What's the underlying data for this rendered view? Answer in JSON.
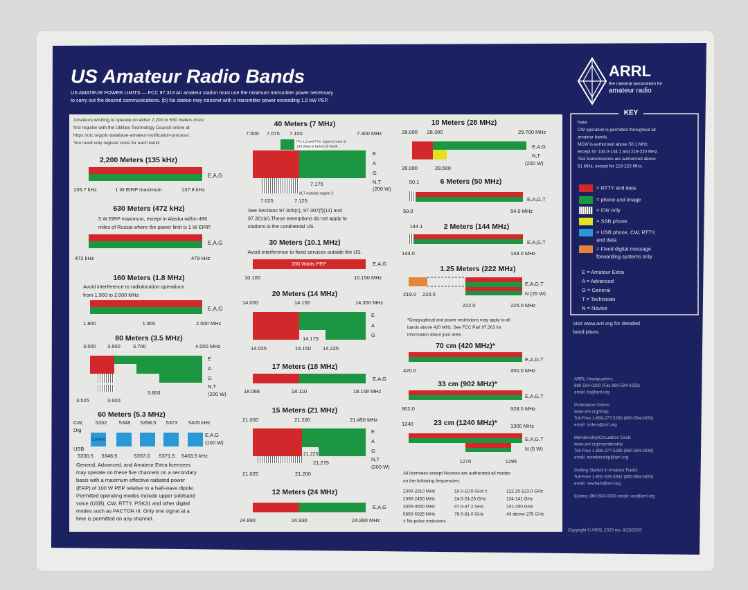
{
  "header": {
    "title": "US Amateur Radio Bands",
    "power_limits": [
      "US AMATEUR POWER LIMITS — FCC 97.313   An amateur station must use the minimum transmitter power necessary",
      "to carry out the desired communications.   (b) No station may transmit with a transmitter power exceeding 1.5 kW PEP."
    ]
  },
  "logo": {
    "name": "ARRL",
    "tagline": "the national association for",
    "subtitle": "amateur radio"
  },
  "intro": [
    "Amateurs wishing to operate on either 2,200 or 630 meters must",
    "first register with the Utilities Technology Council online at",
    "https://utc.org/plc-database-amateur-notification-process/.",
    "You need only register once for each band."
  ],
  "bands": {
    "b2200": {
      "title": "2,200 Meters (135 kHz)",
      "tiers": [
        "E,A,G"
      ],
      "labels": [
        "135.7 kHz",
        "1 W EIRP maximum",
        "137.8 kHz"
      ]
    },
    "b630": {
      "title": "630 Meters (472 kHz)",
      "notes": [
        "5 W EIRP maximum, except in Alaska within 496",
        "miles of Russia where the power limit is 1 W EIRP."
      ],
      "tiers": [
        "E,A,G"
      ],
      "labels": [
        "472 kHz",
        "479 kHz"
      ]
    },
    "b160": {
      "title": "160 Meters (1.8 MHz)",
      "notes": [
        "Avoid interference to radiolocation operations",
        "from 1.900 to 2.000 MHz"
      ],
      "tiers": [
        "E,A,G"
      ],
      "labels": [
        "1.800",
        "1.900",
        "2.000 MHz"
      ]
    },
    "b80": {
      "title": "80 Meters (3.5 MHz)",
      "top": [
        "3.500",
        "3.600",
        "3.700",
        "4.000 MHz"
      ],
      "tiers": [
        "E",
        "A",
        "G",
        "N,T",
        "(200 W)"
      ],
      "bottom": [
        "3.525",
        "3.600",
        "3.800"
      ]
    },
    "b60": {
      "title": "60 Meters (5.3 MHz)",
      "side": [
        "CW,",
        "Dig",
        "USB"
      ],
      "top": [
        "5332",
        "5348",
        "5358.5",
        "5373",
        "5405 kHz"
      ],
      "box": "2.8 kHz",
      "tiers": [
        "E,A,G",
        "(100 W)"
      ],
      "bottom": [
        "5330.5",
        "5346.5",
        "5357.0",
        "5371.5",
        "5403.5 kHz"
      ],
      "notes": [
        "General, Advanced, and Amateur Extra licensees",
        "may operate on these five channels on a secondary",
        "basis with a maximum effective radiated power",
        "(ERP) of 100 W PEP relative to a half-wave dipole.",
        "Permitted operating modes include upper sideband",
        "voice (USB), CW, RTTY, PSK31 and other digital",
        "modes such as PACTOR III. Only one signal at a",
        "time is permitted on any channel."
      ]
    },
    "b40": {
      "title": "40 Meters (7 MHz)",
      "top": [
        "7.000",
        "7.075",
        "7.100",
        "7.300 MHz"
      ],
      "inset": [
        "ITU 1,3 and FCC region 2 west of",
        "130 West or below 20 North"
      ],
      "tiers": [
        "E",
        "A",
        "G",
        "N,T",
        "(200 W)"
      ],
      "bottom": [
        "7.025",
        "7.125",
        "7.175"
      ],
      "outside": "N,T outside region 2",
      "notes": [
        "See Sections 97.305(c), 97.307(f)(11) and",
        "97.301(e).These exemptions do not apply to",
        "stations in the continental US."
      ]
    },
    "b30": {
      "title": "30 Meters (10.1 MHz)",
      "note": "Avoid interference to fixed services outside the US.",
      "bar": "200 Watts PEP",
      "tiers": [
        "E,A,G"
      ],
      "labels": [
        "10.100",
        "10.150 MHz"
      ]
    },
    "b20": {
      "title": "20 Meters (14 MHz)",
      "top": [
        "14.000",
        "14.150",
        "14.350 MHz"
      ],
      "tiers": [
        "E",
        "A",
        "G"
      ],
      "bottom": [
        "14.025",
        "14.150",
        "14.175",
        "14.225"
      ]
    },
    "b17": {
      "title": "17 Meters (18 MHz)",
      "tiers": [
        "E,A,G"
      ],
      "labels": [
        "18.068",
        "18.110",
        "18.168 MHz"
      ]
    },
    "b15": {
      "title": "15 Meters (21 MHz)",
      "top": [
        "21.000",
        "21.200",
        "21.450 MHz"
      ],
      "tiers": [
        "E",
        "A",
        "G",
        "N,T",
        "(200 W)"
      ],
      "mid": [
        "21.225",
        "21.275"
      ],
      "bottom": [
        "21.025",
        "21.200"
      ]
    },
    "b12": {
      "title": "12 Meters (24 MHz)",
      "tiers": [
        "E,A,G"
      ],
      "labels": [
        "24.890",
        "24.930",
        "24.990 MHz"
      ]
    },
    "b10": {
      "title": "10 Meters (28 MHz)",
      "top": [
        "28.000",
        "28.300",
        "29.700 MHz"
      ],
      "tiers": [
        "E,A,G",
        "N,T",
        "(200 W)"
      ],
      "bottom": [
        "28.000",
        "28.500"
      ]
    },
    "b6": {
      "title": "6 Meters (50 MHz)",
      "tiers": [
        "E,A,G,T"
      ],
      "labels": [
        "50.1",
        "50.0",
        "54.0 MHz"
      ]
    },
    "b2": {
      "title": "2 Meters (144 MHz)",
      "tiers": [
        "E,A,G,T"
      ],
      "labels": [
        "144.1",
        "144.0",
        "148.0 MHz"
      ]
    },
    "b125": {
      "title": "1.25 Meters (222 MHz)",
      "tiers": [
        "E,A,G,T",
        "N (25 W)"
      ],
      "labels": [
        "219.0",
        "220.0",
        "222.0",
        "225.0 MHz"
      ]
    },
    "b70": {
      "title": "70 cm (420 MHz)*",
      "tiers": [
        "E,A,G,T"
      ],
      "labels": [
        "420.0",
        "450.0 MHz"
      ]
    },
    "b33": {
      "title": "33 cm (902 MHz)*",
      "tiers": [
        "E,A,G,T"
      ],
      "labels": [
        "902.0",
        "928.0 MHz"
      ]
    },
    "b23": {
      "title": "23 cm (1240 MHz)*",
      "tiers": [
        "E,A,G,T",
        "N (5 W)"
      ],
      "labels": [
        "1240",
        "1300 MHz",
        "1270",
        "1295"
      ]
    }
  },
  "uhf_note": [
    "*Geographical and power restrictions may apply to all",
    "bands above 420 MHz. See FCC Part 97.303 for",
    "information about your area."
  ],
  "above": {
    "intro": [
      "All licensees except Novices are authorized all modes",
      "on the following frequencies:"
    ],
    "rows": [
      [
        "2300-2310 MHz",
        "10.0-10.5 GHz ‡",
        "122.25-123.0 GHz"
      ],
      [
        "2390-2450 MHz",
        "24.0-24.25 GHz",
        "134-141 GHz"
      ],
      [
        "3300-3500 MHz",
        "47.0-47.2 GHz",
        "241-250 GHz"
      ],
      [
        "5650-5925 MHz",
        "76.0-81.0 GHz",
        "All above 275 GHz"
      ]
    ],
    "footnote": "‡ No pulse emissions"
  },
  "key": {
    "title": "KEY",
    "notes": [
      "Note:",
      "CW operation is permitted throughout all",
      "amateur bands.",
      "MCW is authorized above 50.1 MHz,",
      "except for 144.0-144.1 and 219-220 MHz.",
      "Test transmissions are authorized above",
      "51 MHz, except for 219-220 MHz."
    ],
    "legend": [
      [
        "= RTTY and data"
      ],
      [
        "= phone and image"
      ],
      [
        "= CW only"
      ],
      [
        "= SSB phone"
      ],
      [
        "= USB phone, CW, RTTY,",
        "and data"
      ],
      [
        "= Fixed digital message",
        "forwarding systems only"
      ]
    ],
    "classes": [
      "E = Amateur Extra",
      "A = Advanced",
      "G = General",
      "T = Technician",
      "N = Novice"
    ]
  },
  "visit": [
    "Visit www.arrl.org for detailed",
    "band plans."
  ],
  "contacts": [
    [
      "ARRL Headquarters:",
      "860-594-0200 (Fax 860-594-0259)",
      "email: hq@arrl.org"
    ],
    [
      "Publication Orders:",
      "www.arrl.org/shop",
      "Toll-Free 1-888-277-5289 (860-594-0355)",
      "email: orders@arrl.org"
    ],
    [
      "Membership/Circulation Desk:",
      "www.arrl.org/membership",
      "Toll-Free 1-888-277-5289 (860-594-0338)",
      "email: membership@arrl.org"
    ],
    [
      "Getting Started in Amateur Radio:",
      "Toll-Free 1-800-326-3942 (860-594-0355)",
      "email: newham@arrl.org"
    ],
    [
      "Exams: 860-594-0300   email: vec@arrl.org"
    ]
  ],
  "footer": "Copyright © ARRL 2020    rev. 8/23/2020"
}
